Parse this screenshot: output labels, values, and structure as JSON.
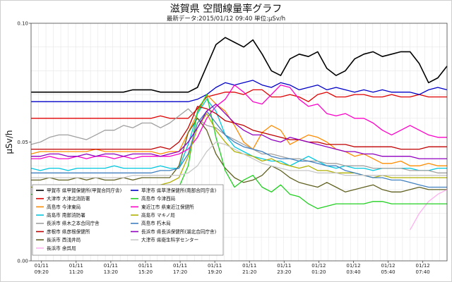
{
  "chart_data": {
    "type": "line",
    "title": "滋賀県 空間線量率グラフ",
    "subtitle": "最新データ:2015/01/12 09:40 単位:μSv/h",
    "ylabel": "μSv/h",
    "ylim": [
      0.0,
      0.1
    ],
    "y_ticks": [
      "0.00",
      "0.05",
      "0.10"
    ],
    "x_tick_labels": [
      [
        "01/11",
        "09:20"
      ],
      [
        "01/11",
        "11:20"
      ],
      [
        "01/11",
        "13:20"
      ],
      [
        "01/11",
        "15:20"
      ],
      [
        "01/11",
        "17:20"
      ],
      [
        "01/11",
        "19:20"
      ],
      [
        "01/11",
        "21:20"
      ],
      [
        "01/11",
        "23:20"
      ],
      [
        "01/12",
        "01:20"
      ],
      [
        "01/12",
        "03:40"
      ],
      [
        "01/12",
        "05:40"
      ],
      [
        "01/12",
        "07:40"
      ]
    ],
    "grid": true,
    "legend_placement": "bottom-left",
    "series": [
      {
        "name": "甲賀市 県甲賀保健所(甲賀合同庁舎)",
        "color": "#000000",
        "values": [
          0.071,
          0.071,
          0.071,
          0.071,
          0.071,
          0.071,
          0.071,
          0.071,
          0.071,
          0.071,
          0.071,
          0.072,
          0.072,
          0.072,
          0.071,
          0.071,
          0.071,
          0.071,
          0.073,
          0.082,
          0.091,
          0.094,
          0.092,
          0.09,
          0.093,
          0.087,
          0.08,
          0.078,
          0.085,
          0.087,
          0.086,
          0.088,
          0.081,
          0.078,
          0.08,
          0.085,
          0.087,
          0.088,
          0.086,
          0.087,
          0.088,
          0.088,
          0.083,
          0.075,
          0.077,
          0.082
        ]
      },
      {
        "name": "大津市 大津北消防署",
        "color": "#e00000",
        "values": [
          0.06,
          0.06,
          0.06,
          0.06,
          0.06,
          0.06,
          0.06,
          0.06,
          0.06,
          0.06,
          0.06,
          0.06,
          0.06,
          0.06,
          0.061,
          0.06,
          0.06,
          0.06,
          0.064,
          0.069,
          0.07,
          0.071,
          0.071,
          0.07,
          0.072,
          0.072,
          0.069,
          0.069,
          0.07,
          0.069,
          0.067,
          0.07,
          0.071,
          0.069,
          0.069,
          0.07,
          0.07,
          0.069,
          0.069,
          0.07,
          0.069,
          0.069,
          0.07,
          0.069,
          0.069,
          0.069
        ]
      },
      {
        "name": "高島市 今津東局",
        "color": "#ff8c00",
        "values": [
          0.045,
          0.046,
          0.046,
          0.046,
          0.046,
          0.046,
          0.046,
          0.047,
          0.046,
          0.046,
          0.046,
          0.046,
          0.046,
          0.046,
          0.045,
          0.046,
          0.046,
          0.054,
          0.062,
          0.07,
          0.066,
          0.063,
          0.057,
          0.05,
          0.047,
          0.054,
          0.057,
          0.055,
          0.049,
          0.051,
          0.053,
          0.052,
          0.05,
          0.047,
          0.046,
          0.044,
          0.045,
          0.043,
          0.041,
          0.041,
          0.042,
          0.04,
          0.04,
          0.041,
          0.04,
          0.04
        ]
      },
      {
        "name": "高島市 南部消防署",
        "color": "#00c8e0",
        "values": [
          0.039,
          0.038,
          0.039,
          0.039,
          0.038,
          0.039,
          0.039,
          0.039,
          0.039,
          0.04,
          0.039,
          0.039,
          0.039,
          0.039,
          0.04,
          0.039,
          0.039,
          0.049,
          0.062,
          0.068,
          0.063,
          0.053,
          0.048,
          0.046,
          0.044,
          0.043,
          0.042,
          0.042,
          0.04,
          0.042,
          0.044,
          0.042,
          0.04,
          0.039,
          0.04,
          0.039,
          0.039,
          0.038,
          0.039,
          0.039,
          0.039,
          0.039,
          0.038,
          0.038,
          0.039,
          0.039
        ]
      },
      {
        "name": "長浜市 県木之本合同庁舎",
        "color": "#a0a0a0",
        "values": [
          0.049,
          0.05,
          0.052,
          0.053,
          0.053,
          0.052,
          0.051,
          0.053,
          0.055,
          0.055,
          0.057,
          0.056,
          0.058,
          0.058,
          0.056,
          0.058,
          0.061,
          0.064,
          0.06,
          0.057,
          0.056,
          0.053,
          0.051,
          0.049,
          0.047,
          0.045,
          0.045,
          0.044,
          0.043,
          0.043,
          0.042,
          0.042,
          0.041,
          0.041,
          0.04,
          0.04,
          0.04,
          0.039,
          0.039,
          0.039,
          0.039,
          0.038,
          0.038,
          0.038,
          0.037,
          0.037
        ]
      },
      {
        "name": "彦根市 県彦根保健所",
        "color": "#c00000",
        "values": [
          0.047,
          0.047,
          0.047,
          0.047,
          0.047,
          0.047,
          0.047,
          0.047,
          0.047,
          0.047,
          0.047,
          0.047,
          0.047,
          0.047,
          0.048,
          0.047,
          0.05,
          0.056,
          0.065,
          0.064,
          0.062,
          0.059,
          0.058,
          0.057,
          0.055,
          0.054,
          0.053,
          0.052,
          0.051,
          0.051,
          0.05,
          0.05,
          0.049,
          0.049,
          0.049,
          0.048,
          0.048,
          0.048,
          0.048,
          0.048,
          0.047,
          0.047,
          0.047,
          0.048,
          0.048,
          0.048
        ]
      },
      {
        "name": "長浜市 西浅井局",
        "color": "#606020",
        "values": [
          0.034,
          0.034,
          0.035,
          0.034,
          0.034,
          0.035,
          0.034,
          0.035,
          0.034,
          0.034,
          0.035,
          0.034,
          0.035,
          0.035,
          0.035,
          0.035,
          0.04,
          0.054,
          0.06,
          0.055,
          0.045,
          0.039,
          0.035,
          0.033,
          0.034,
          0.036,
          0.04,
          0.038,
          0.035,
          0.033,
          0.032,
          0.031,
          0.033,
          0.031,
          0.029,
          0.03,
          0.031,
          0.032,
          0.03,
          0.029,
          0.029,
          0.03,
          0.031,
          0.03,
          0.03,
          0.03
        ]
      },
      {
        "name": "長浜市 余呉局",
        "color": "#ffb0f0",
        "values": [
          null,
          null,
          null,
          null,
          null,
          null,
          null,
          null,
          null,
          null,
          null,
          null,
          null,
          null,
          0.029,
          0.025,
          0.021,
          0.017,
          0.013,
          0.01,
          null,
          null,
          null,
          null,
          null,
          null,
          null,
          null,
          null,
          null,
          null,
          null,
          null,
          null,
          null,
          null,
          null,
          null,
          null,
          null,
          null,
          0.013,
          0.02,
          0.025,
          0.028,
          0.03
        ]
      },
      {
        "name": "草津市 県草津保健所(南部合同庁舎)",
        "color": "#0000c8",
        "values": [
          0.067,
          0.067,
          0.067,
          0.067,
          0.067,
          0.067,
          0.067,
          0.067,
          0.067,
          0.067,
          0.067,
          0.067,
          0.067,
          0.067,
          0.067,
          0.067,
          0.067,
          0.067,
          0.068,
          0.07,
          0.073,
          0.075,
          0.074,
          0.075,
          0.076,
          0.074,
          0.073,
          0.075,
          0.074,
          0.072,
          0.073,
          0.074,
          0.072,
          0.073,
          0.072,
          0.071,
          0.072,
          0.071,
          0.072,
          0.071,
          0.071,
          0.071,
          0.07,
          0.072,
          0.073,
          0.072
        ]
      },
      {
        "name": "高島市 今津西局",
        "color": "#20d020",
        "values": [
          0.028,
          0.028,
          0.028,
          0.028,
          0.028,
          0.028,
          0.028,
          0.028,
          0.028,
          0.028,
          0.028,
          0.028,
          0.028,
          0.028,
          0.029,
          0.028,
          0.031,
          0.04,
          0.063,
          0.07,
          0.052,
          0.038,
          0.031,
          0.034,
          0.036,
          0.031,
          0.029,
          0.032,
          0.028,
          0.027,
          0.024,
          0.022,
          0.023,
          0.024,
          0.024,
          0.024,
          0.024,
          0.025,
          0.025,
          0.024,
          0.024,
          0.024,
          0.024,
          0.024,
          0.024,
          0.024
        ]
      },
      {
        "name": "東近江市 県東近江保健所",
        "color": "#ff00c8",
        "values": [
          0.043,
          0.043,
          0.044,
          0.043,
          0.043,
          0.044,
          0.043,
          0.044,
          0.044,
          0.043,
          0.044,
          0.043,
          0.044,
          0.044,
          0.044,
          0.044,
          0.045,
          0.047,
          0.052,
          0.06,
          0.065,
          0.068,
          0.074,
          0.071,
          0.067,
          0.066,
          0.07,
          0.074,
          0.073,
          0.068,
          0.065,
          0.066,
          0.062,
          0.061,
          0.062,
          0.06,
          0.06,
          0.058,
          0.055,
          0.053,
          0.055,
          0.057,
          0.055,
          0.053,
          0.052,
          0.052
        ]
      },
      {
        "name": "高島市 マキノ局",
        "color": "#b0b000",
        "values": [
          0.031,
          0.031,
          0.031,
          0.031,
          0.031,
          0.031,
          0.031,
          0.031,
          0.031,
          0.031,
          0.031,
          0.031,
          0.031,
          0.031,
          0.032,
          0.033,
          0.035,
          0.044,
          0.056,
          0.062,
          0.055,
          0.05,
          0.046,
          0.045,
          0.044,
          0.042,
          0.043,
          0.041,
          0.04,
          0.039,
          0.04,
          0.038,
          0.038,
          0.037,
          0.037,
          0.037,
          0.036,
          0.035,
          0.036,
          0.035,
          0.035,
          0.035,
          0.035,
          0.035,
          0.035,
          0.035
        ]
      },
      {
        "name": "高島市 朽木局",
        "color": "#4080c0",
        "values": [
          0.037,
          0.037,
          0.037,
          0.037,
          0.037,
          0.037,
          0.037,
          0.037,
          0.037,
          0.037,
          0.037,
          0.037,
          0.037,
          0.037,
          0.038,
          0.038,
          0.039,
          0.045,
          0.058,
          0.063,
          0.058,
          0.053,
          0.05,
          0.048,
          0.047,
          0.046,
          0.044,
          0.043,
          0.043,
          0.042,
          0.042,
          0.041,
          0.04,
          0.04,
          0.038,
          0.037,
          0.036,
          0.035,
          0.035,
          0.034,
          0.034,
          0.033,
          0.032,
          0.031,
          0.031,
          0.031
        ]
      },
      {
        "name": "長浜市 県長浜保健所(湖北合同庁舎)",
        "color": "#9000c0",
        "values": [
          0.044,
          0.044,
          0.045,
          0.045,
          0.044,
          0.044,
          0.045,
          0.044,
          0.045,
          0.045,
          0.044,
          0.045,
          0.045,
          0.045,
          0.044,
          0.045,
          0.046,
          0.05,
          0.056,
          0.063,
          0.066,
          0.062,
          0.058,
          0.055,
          0.053,
          0.053,
          0.051,
          0.05,
          0.052,
          0.051,
          0.05,
          0.049,
          0.048,
          0.047,
          0.046,
          0.046,
          0.045,
          0.045,
          0.044,
          0.044,
          0.044,
          0.044,
          0.043,
          0.043,
          0.043,
          0.043
        ]
      },
      {
        "name": "大津市 県衛生科学センター",
        "color": "#c8c8c8",
        "values": [
          0.035,
          0.035,
          0.035,
          0.035,
          0.035,
          0.035,
          0.035,
          0.035,
          0.035,
          0.035,
          0.035,
          0.036,
          0.036,
          0.036,
          0.036,
          0.036,
          0.036,
          0.037,
          0.04,
          0.046,
          0.05,
          0.049,
          0.047,
          0.045,
          0.043,
          0.041,
          0.04,
          0.039,
          0.038,
          0.038,
          0.038,
          0.037,
          0.037,
          0.037,
          0.036,
          0.036,
          0.036,
          0.036,
          0.036,
          0.036,
          0.036,
          0.036,
          0.036,
          0.036,
          0.036,
          0.036
        ]
      }
    ]
  }
}
